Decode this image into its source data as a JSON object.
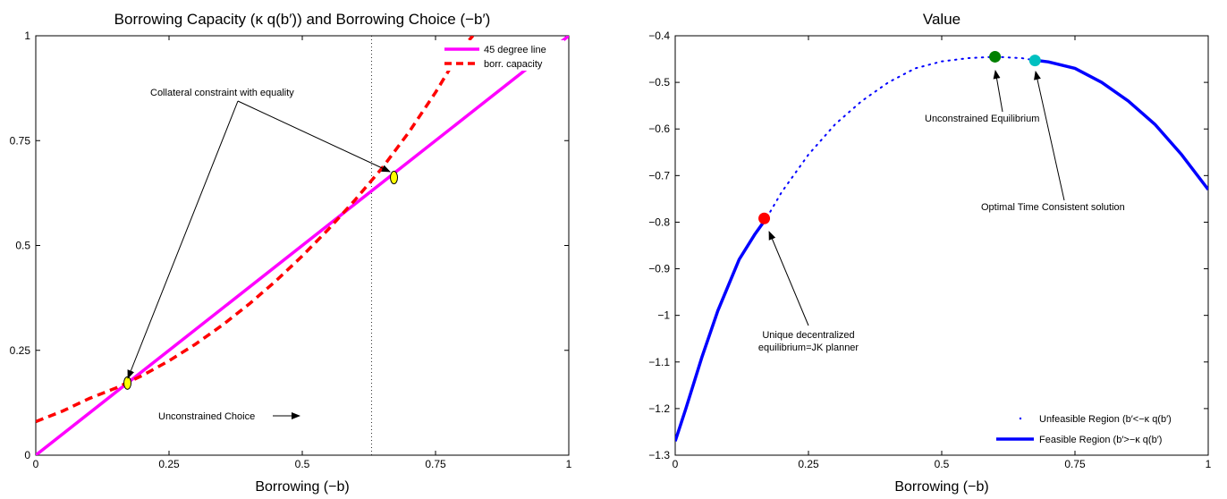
{
  "chart_data": [
    {
      "type": "line",
      "title": "Borrowing Capacity (κ q(b′)) and Borrowing Choice (−b′)",
      "xlabel": "Borrowing (−b)",
      "ylabel": "",
      "xlim": [
        0,
        1
      ],
      "ylim": [
        0,
        1
      ],
      "x_ticks": [
        "0",
        "0.25",
        "0.5",
        "0.75",
        "1"
      ],
      "y_ticks": [
        "0",
        "0.25",
        "0.5",
        "0.75",
        "1"
      ],
      "grid": false,
      "legend_position": "top-right",
      "series": [
        {
          "name": "45 degree line",
          "color": "#ff00ff",
          "style": "solid",
          "x": [
            0,
            1
          ],
          "y": [
            0,
            1
          ]
        },
        {
          "name": "borr. capacity",
          "color": "#ff0000",
          "style": "dashed",
          "x": [
            0,
            0.05,
            0.1,
            0.15,
            0.2,
            0.25,
            0.3,
            0.35,
            0.4,
            0.45,
            0.5,
            0.55,
            0.6,
            0.65,
            0.7,
            0.75,
            0.8,
            0.82
          ],
          "y": [
            0.08,
            0.105,
            0.135,
            0.16,
            0.19,
            0.225,
            0.265,
            0.31,
            0.36,
            0.415,
            0.475,
            0.54,
            0.61,
            0.685,
            0.77,
            0.865,
            0.97,
            1.0
          ]
        }
      ],
      "markers": [
        {
          "x": 0.172,
          "y": 0.172,
          "color": "#ffff00"
        },
        {
          "x": 0.672,
          "y": 0.662,
          "color": "#ffff00"
        }
      ],
      "vertical_line_x": 0.63,
      "annotations": {
        "collateral": "Collateral constraint with equality",
        "unconstrained": "Unconstrained Choice"
      }
    },
    {
      "type": "line",
      "title": "Value",
      "xlabel": "Borrowing (−b)",
      "ylabel": "",
      "xlim": [
        0,
        1
      ],
      "ylim": [
        -1.3,
        -0.4
      ],
      "x_ticks": [
        "0",
        "0.25",
        "0.5",
        "0.75",
        "1"
      ],
      "y_ticks": [
        "−1.3",
        "−1.2",
        "−1.1",
        "−1",
        "−0.9",
        "−0.8",
        "−0.7",
        "−0.6",
        "−0.5",
        "−0.4"
      ],
      "y_tick_values": [
        -1.3,
        -1.2,
        -1.1,
        -1.0,
        -0.9,
        -0.8,
        -0.7,
        -0.6,
        -0.5,
        -0.4
      ],
      "grid": false,
      "legend_position": "bottom-right",
      "series": [
        {
          "name": "Unfeasible Region (b′<−κ q(b′)",
          "color": "#0000ff",
          "style": "dotted",
          "x": [
            0.172,
            0.2,
            0.25,
            0.3,
            0.35,
            0.4,
            0.45,
            0.5,
            0.55,
            0.6,
            0.65,
            0.672
          ],
          "y": [
            -0.79,
            -0.735,
            -0.655,
            -0.59,
            -0.54,
            -0.5,
            -0.47,
            -0.455,
            -0.448,
            -0.445,
            -0.448,
            -0.452
          ]
        },
        {
          "name": "Feasible Region (b′>−κ q(b′)",
          "color": "#0000ff",
          "style": "solid",
          "x": [
            0,
            0.02,
            0.05,
            0.08,
            0.1,
            0.12,
            0.15,
            0.172
          ],
          "y": [
            -1.27,
            -1.2,
            -1.09,
            -0.99,
            -0.935,
            -0.88,
            -0.825,
            -0.79
          ],
          "x2": [
            0.672,
            0.7,
            0.75,
            0.8,
            0.85,
            0.9,
            0.95,
            1.0
          ],
          "y2": [
            -0.452,
            -0.456,
            -0.47,
            -0.5,
            -0.54,
            -0.59,
            -0.655,
            -0.73
          ]
        }
      ],
      "markers": [
        {
          "x": 0.167,
          "y": -0.792,
          "color": "#ff0000"
        },
        {
          "x": 0.6,
          "y": -0.445,
          "color": "#008000"
        },
        {
          "x": 0.675,
          "y": -0.453,
          "color": "#00c0c0"
        }
      ],
      "annotations": {
        "unconstrained_eq": "Unconstrained Equilibrium",
        "optimal": "Optimal Time Consistent solution",
        "unique1": "Unique decentralized",
        "unique2": "equilibrium=JK planner"
      }
    }
  ]
}
